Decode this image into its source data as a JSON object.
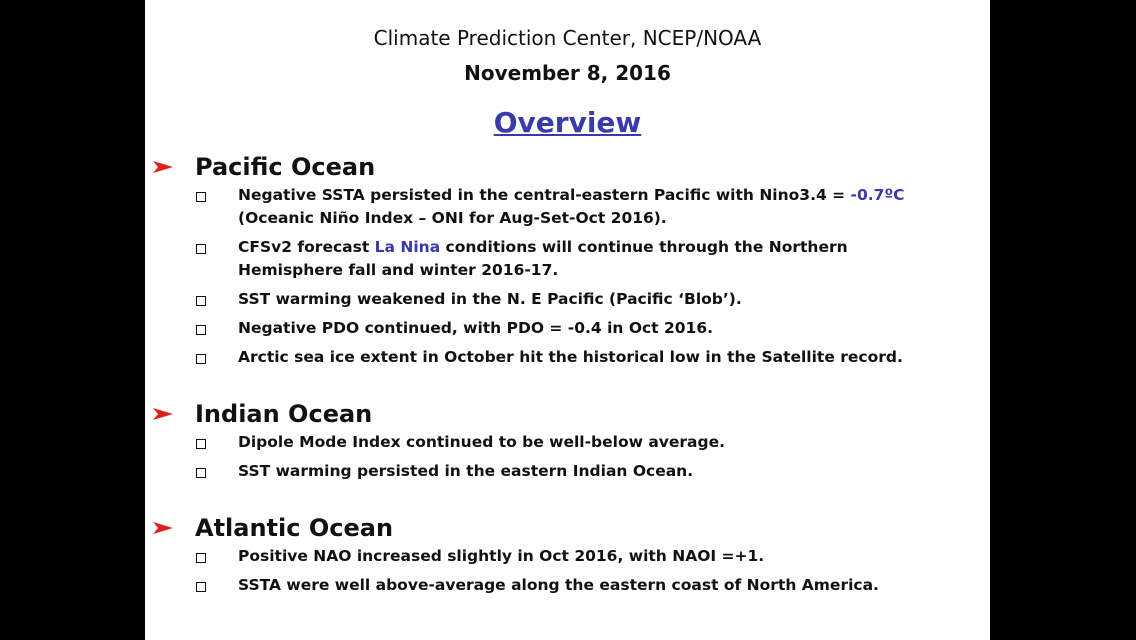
{
  "header": {
    "org": "Climate Prediction Center, NCEP/NOAA",
    "date": "November 8, 2016",
    "title": "Overview"
  },
  "sections": [
    {
      "heading": "Pacific Ocean",
      "bullets": [
        {
          "lines": [
            [
              "Negative SSTA persisted in the central-eastern Pacific with Nino3.4 = ",
              {
                "text": "-0.7ºC",
                "color": "#3a3aa8"
              }
            ],
            [
              "(Oceanic Niño Index – ONI  for  Aug-Set-Oct 2016)."
            ]
          ]
        },
        {
          "lines": [
            [
              "CFSv2 forecast ",
              {
                "text": "La Nina",
                "color": "#3a3aa8"
              },
              " conditions will continue through the Northern"
            ],
            [
              "Hemisphere fall and winter 2016-17."
            ]
          ]
        },
        {
          "lines": [
            [
              "SST warming weakened in the N. E Pacific (Pacific ‘Blob’)."
            ]
          ]
        },
        {
          "lines": [
            [
              "Negative PDO continued, with PDO = -0.4  in Oct 2016."
            ]
          ]
        },
        {
          "lines": [
            [
              "Arctic sea ice extent in October hit the historical low in the Satellite record."
            ]
          ]
        }
      ]
    },
    {
      "heading": "Indian Ocean",
      "bullets": [
        {
          "lines": [
            [
              "Dipole Mode Index continued to be well-below average."
            ]
          ]
        },
        {
          "lines": [
            [
              "SST warming persisted in the eastern Indian Ocean."
            ]
          ]
        }
      ]
    },
    {
      "heading": "Atlantic Ocean",
      "bullets": [
        {
          "lines": [
            [
              "Positive NAO increased slightly in Oct 2016, with NAOI =+1."
            ]
          ]
        },
        {
          "lines": [
            [
              "SSTA were well above-average along the eastern coast of North America."
            ]
          ]
        }
      ]
    }
  ]
}
